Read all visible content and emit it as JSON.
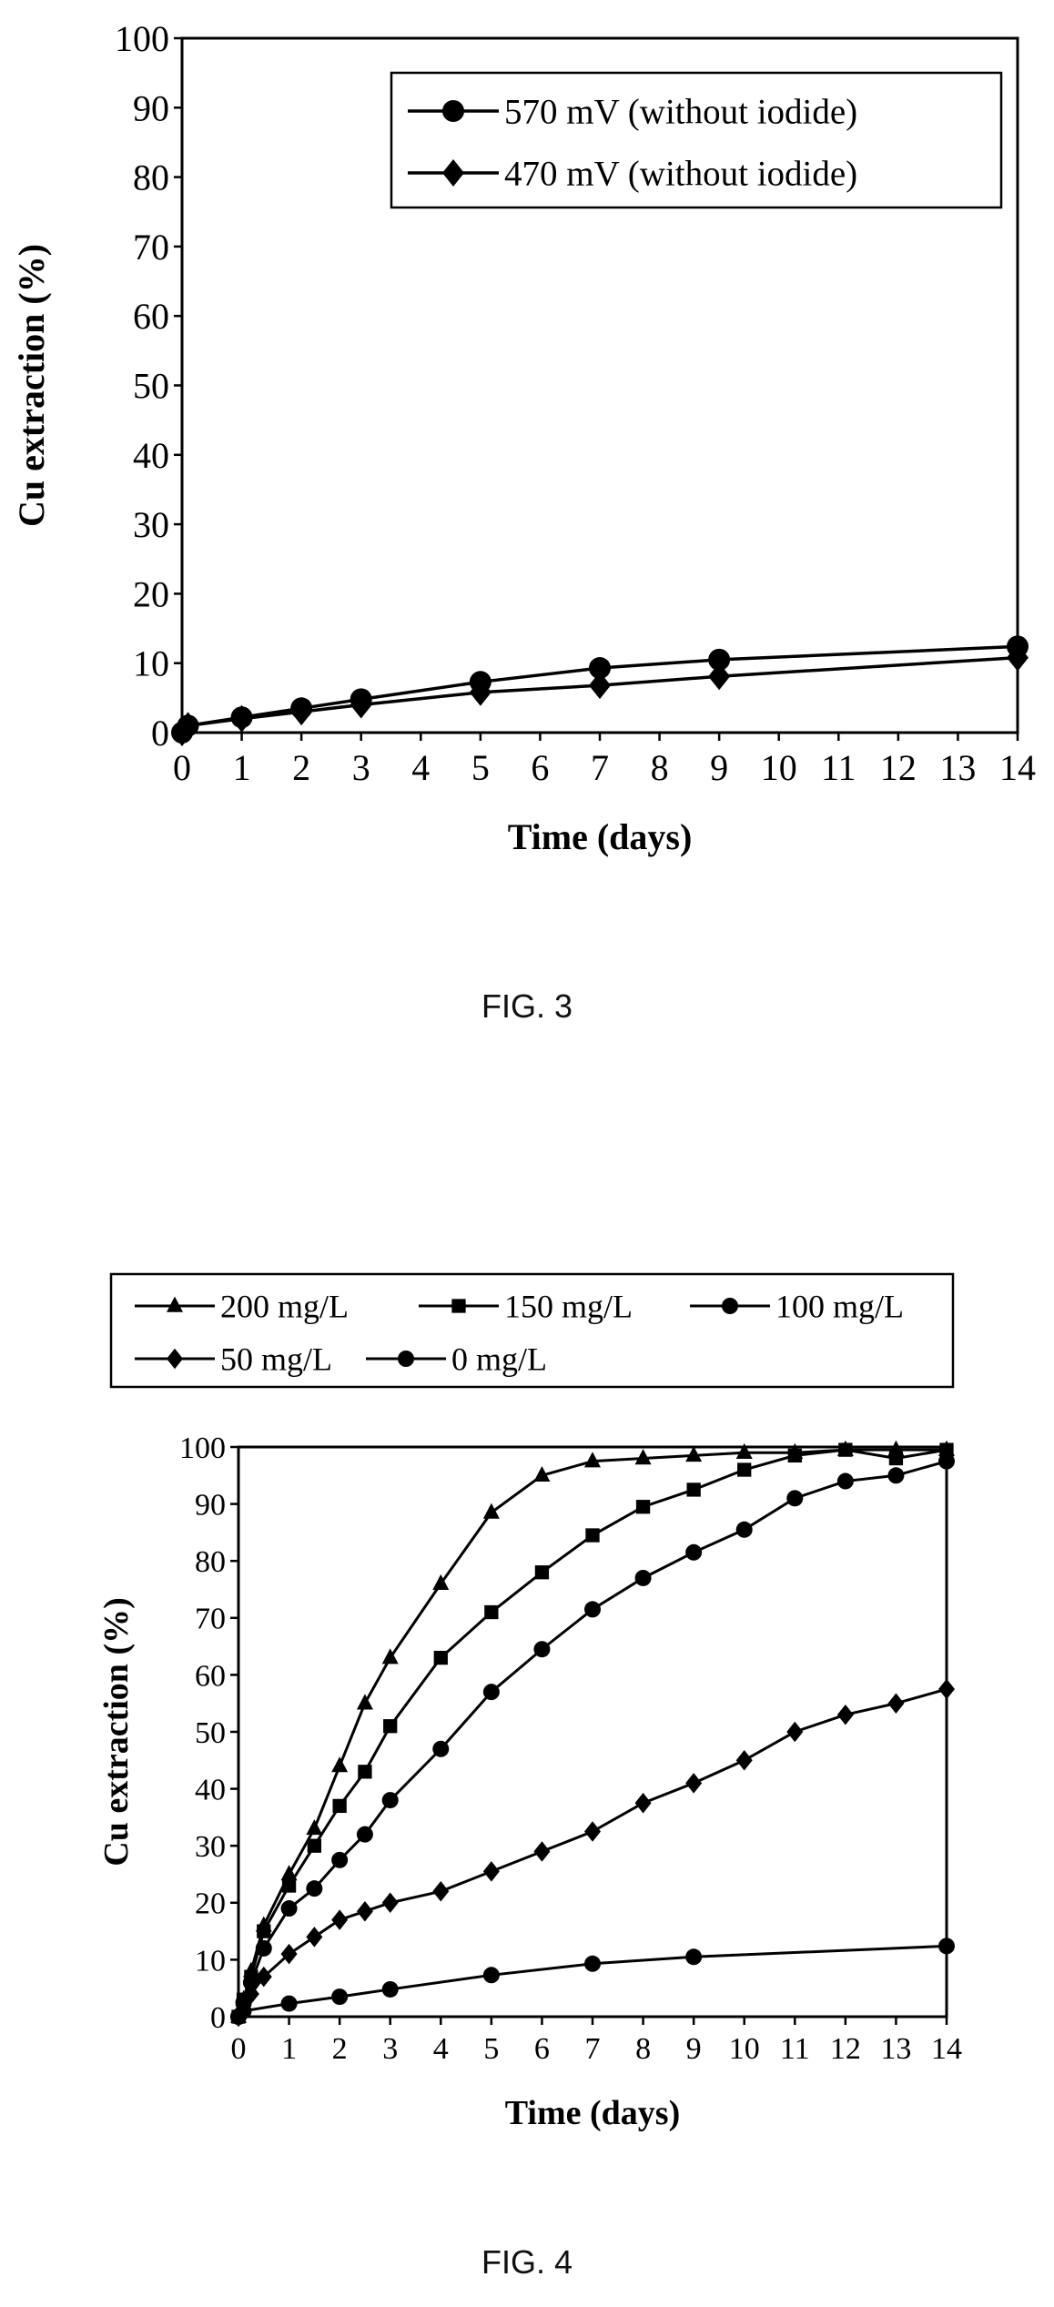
{
  "chart_data": [
    {
      "type": "line",
      "title": "",
      "xlabel": "Time (days)",
      "ylabel": "Cu extraction (%)",
      "xlim": [
        0,
        14
      ],
      "ylim": [
        0,
        100
      ],
      "xticks": [
        0,
        1,
        2,
        3,
        4,
        5,
        6,
        7,
        8,
        9,
        10,
        11,
        12,
        13,
        14
      ],
      "yticks": [
        0,
        10,
        20,
        30,
        40,
        50,
        60,
        70,
        80,
        90,
        100
      ],
      "grid": false,
      "legend_position": "top-right",
      "caption": "FIG. 3",
      "series": [
        {
          "name": "570 mV (without iodide)",
          "marker": "circle",
          "x": [
            0,
            0.1,
            1,
            2,
            3,
            5,
            7,
            9,
            14
          ],
          "y": [
            0,
            1,
            2.2,
            3.5,
            4.8,
            7.3,
            9.3,
            10.5,
            12.4
          ]
        },
        {
          "name": "470 mV (without iodide)",
          "marker": "diamond",
          "x": [
            0,
            0.1,
            1,
            2,
            3,
            5,
            7,
            9,
            14
          ],
          "y": [
            0,
            1,
            2,
            3,
            4,
            5.8,
            6.8,
            8.1,
            10.8
          ]
        }
      ]
    },
    {
      "type": "line",
      "title": "",
      "xlabel": "Time (days)",
      "ylabel": "Cu extraction (%)",
      "xlim": [
        0,
        14
      ],
      "ylim": [
        0,
        100
      ],
      "xticks": [
        0,
        1,
        2,
        3,
        4,
        5,
        6,
        7,
        8,
        9,
        10,
        11,
        12,
        13,
        14
      ],
      "yticks": [
        0,
        10,
        20,
        30,
        40,
        50,
        60,
        70,
        80,
        90,
        100
      ],
      "grid": false,
      "legend_position": "top",
      "caption": "FIG. 4",
      "series": [
        {
          "name": "200 mg/L",
          "marker": "triangle",
          "x": [
            0,
            0.1,
            0.25,
            0.5,
            1,
            1.5,
            2,
            2.5,
            3,
            4,
            5,
            6,
            7,
            8,
            9,
            10,
            11,
            12,
            13,
            14
          ],
          "y": [
            0,
            3,
            8,
            16,
            25,
            33,
            44,
            55,
            63,
            76,
            88.5,
            95,
            97.5,
            98,
            98.5,
            99,
            99,
            99.5,
            99.5,
            99.5
          ]
        },
        {
          "name": "150 mg/L",
          "marker": "square",
          "x": [
            0,
            0.1,
            0.25,
            0.5,
            1,
            1.5,
            2,
            2.5,
            3,
            4,
            5,
            6,
            7,
            8,
            9,
            10,
            11,
            12,
            13,
            14
          ],
          "y": [
            0,
            3,
            7,
            15,
            23,
            30,
            37,
            43,
            51,
            63,
            71,
            78,
            84.5,
            89.5,
            92.5,
            96,
            98.5,
            99.5,
            98,
            99.5
          ]
        },
        {
          "name": "100 mg/L",
          "marker": "circle",
          "x": [
            0,
            0.1,
            0.25,
            0.5,
            1,
            1.5,
            2,
            2.5,
            3,
            4,
            5,
            6,
            7,
            8,
            9,
            10,
            11,
            12,
            13,
            14
          ],
          "y": [
            0,
            2.5,
            6,
            12,
            19,
            22.5,
            27.5,
            32,
            38,
            47,
            57,
            64.5,
            71.5,
            77,
            81.5,
            85.5,
            91,
            94,
            95,
            97.5
          ]
        },
        {
          "name": "50 mg/L",
          "marker": "diamond",
          "x": [
            0,
            0.1,
            0.25,
            0.5,
            1,
            1.5,
            2,
            2.5,
            3,
            4,
            5,
            6,
            7,
            8,
            9,
            10,
            11,
            12,
            13,
            14
          ],
          "y": [
            0,
            2,
            4,
            7,
            11,
            14,
            17,
            18.5,
            20,
            22,
            25.5,
            29,
            32.5,
            37.5,
            41,
            45,
            50,
            53,
            55,
            57.5
          ]
        },
        {
          "name": "0 mg/L",
          "marker": "circle",
          "x": [
            0,
            0.1,
            1,
            2,
            3,
            5,
            7,
            9,
            14
          ],
          "y": [
            0,
            1,
            2.3,
            3.5,
            4.8,
            7.3,
            9.3,
            10.5,
            12.4
          ]
        }
      ]
    }
  ]
}
